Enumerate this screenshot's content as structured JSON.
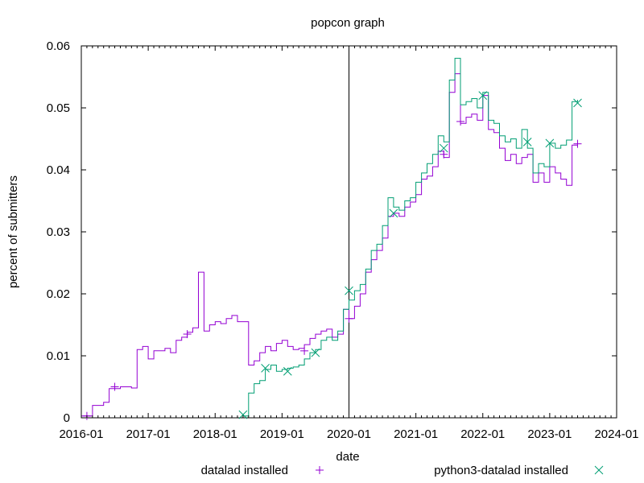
{
  "chart_data": {
    "type": "line",
    "title": "popcon graph",
    "xlabel": "date",
    "ylabel": "percent of submitters",
    "x_range": [
      "2016-01",
      "2024-01"
    ],
    "y_range": [
      0,
      0.06
    ],
    "x_tick_labels": [
      "2016-01",
      "2017-01",
      "2018-01",
      "2019-01",
      "2020-01",
      "2021-01",
      "2022-01",
      "2023-01",
      "2024-01"
    ],
    "y_tick_labels": [
      "0",
      "0.01",
      "0.02",
      "0.03",
      "0.04",
      "0.05",
      "0.06"
    ],
    "marker_line_date": "2020-01",
    "grid": false,
    "legend_position": "bottom",
    "series": [
      {
        "name": "datalad installed",
        "color": "#9400d3",
        "marker": "plus",
        "points": [
          [
            "2016-01",
            0.0003
          ],
          [
            "2016-03",
            0.002
          ],
          [
            "2016-05",
            0.0025
          ],
          [
            "2016-06",
            0.0047
          ],
          [
            "2016-08",
            0.005
          ],
          [
            "2016-10",
            0.0048
          ],
          [
            "2016-11",
            0.011
          ],
          [
            "2016-12",
            0.0115
          ],
          [
            "2017-01",
            0.0095
          ],
          [
            "2017-02",
            0.0108
          ],
          [
            "2017-04",
            0.0112
          ],
          [
            "2017-05",
            0.0105
          ],
          [
            "2017-06",
            0.0125
          ],
          [
            "2017-07",
            0.013
          ],
          [
            "2017-08",
            0.0138
          ],
          [
            "2017-09",
            0.0145
          ],
          [
            "2017-10",
            0.0235
          ],
          [
            "2017-11",
            0.014
          ],
          [
            "2017-12",
            0.015
          ],
          [
            "2018-01",
            0.0155
          ],
          [
            "2018-02",
            0.0152
          ],
          [
            "2018-03",
            0.016
          ],
          [
            "2018-04",
            0.0165
          ],
          [
            "2018-05",
            0.0155
          ],
          [
            "2018-06",
            0.0155
          ],
          [
            "2018-07",
            0.0085
          ],
          [
            "2018-08",
            0.0092
          ],
          [
            "2018-09",
            0.0105
          ],
          [
            "2018-10",
            0.0115
          ],
          [
            "2018-11",
            0.0108
          ],
          [
            "2018-12",
            0.012
          ],
          [
            "2019-01",
            0.0125
          ],
          [
            "2019-02",
            0.0115
          ],
          [
            "2019-03",
            0.011
          ],
          [
            "2019-04",
            0.0112
          ],
          [
            "2019-05",
            0.0118
          ],
          [
            "2019-06",
            0.0128
          ],
          [
            "2019-07",
            0.0135
          ],
          [
            "2019-08",
            0.014
          ],
          [
            "2019-09",
            0.0143
          ],
          [
            "2019-10",
            0.013
          ],
          [
            "2019-11",
            0.0135
          ],
          [
            "2019-12",
            0.0175
          ],
          [
            "2020-01",
            0.016
          ],
          [
            "2020-02",
            0.018
          ],
          [
            "2020-03",
            0.02
          ],
          [
            "2020-04",
            0.0235
          ],
          [
            "2020-05",
            0.0255
          ],
          [
            "2020-06",
            0.027
          ],
          [
            "2020-07",
            0.029
          ],
          [
            "2020-08",
            0.0325
          ],
          [
            "2020-09",
            0.033
          ],
          [
            "2020-10",
            0.0325
          ],
          [
            "2020-11",
            0.034
          ],
          [
            "2020-12",
            0.0348
          ],
          [
            "2021-01",
            0.036
          ],
          [
            "2021-02",
            0.0385
          ],
          [
            "2021-03",
            0.039
          ],
          [
            "2021-04",
            0.0405
          ],
          [
            "2021-05",
            0.043
          ],
          [
            "2021-06",
            0.042
          ],
          [
            "2021-07",
            0.0525
          ],
          [
            "2021-08",
            0.0555
          ],
          [
            "2021-09",
            0.0475
          ],
          [
            "2021-10",
            0.0485
          ],
          [
            "2021-11",
            0.049
          ],
          [
            "2021-12",
            0.048
          ],
          [
            "2022-01",
            0.052
          ],
          [
            "2022-02",
            0.0465
          ],
          [
            "2022-03",
            0.046
          ],
          [
            "2022-04",
            0.0435
          ],
          [
            "2022-05",
            0.0415
          ],
          [
            "2022-06",
            0.0425
          ],
          [
            "2022-07",
            0.041
          ],
          [
            "2022-08",
            0.042
          ],
          [
            "2022-09",
            0.0425
          ],
          [
            "2022-10",
            0.038
          ],
          [
            "2022-11",
            0.0395
          ],
          [
            "2022-12",
            0.038
          ],
          [
            "2023-01",
            0.0405
          ],
          [
            "2023-02",
            0.0395
          ],
          [
            "2023-03",
            0.0385
          ],
          [
            "2023-04",
            0.0375
          ],
          [
            "2023-05",
            0.044
          ],
          [
            "2023-06",
            0.0443
          ]
        ],
        "marker_points": [
          [
            "2016-02",
            0.0003
          ],
          [
            "2016-07",
            0.005
          ],
          [
            "2017-08",
            0.0135
          ],
          [
            "2019-05",
            0.0108
          ],
          [
            "2020-01",
            0.016
          ],
          [
            "2021-06",
            0.0425
          ],
          [
            "2021-09",
            0.0478
          ],
          [
            "2023-06",
            0.0442
          ]
        ]
      },
      {
        "name": "python3-datalad installed",
        "color": "#009e73",
        "marker": "cross",
        "points": [
          [
            "2018-06",
            0.0003
          ],
          [
            "2018-07",
            0.004
          ],
          [
            "2018-08",
            0.0055
          ],
          [
            "2018-09",
            0.006
          ],
          [
            "2018-10",
            0.0078
          ],
          [
            "2018-11",
            0.0085
          ],
          [
            "2018-12",
            0.0075
          ],
          [
            "2019-01",
            0.0078
          ],
          [
            "2019-02",
            0.008
          ],
          [
            "2019-03",
            0.0082
          ],
          [
            "2019-04",
            0.0085
          ],
          [
            "2019-05",
            0.0095
          ],
          [
            "2019-06",
            0.0105
          ],
          [
            "2019-07",
            0.011
          ],
          [
            "2019-08",
            0.0125
          ],
          [
            "2019-09",
            0.013
          ],
          [
            "2019-10",
            0.0125
          ],
          [
            "2019-11",
            0.014
          ],
          [
            "2019-12",
            0.0175
          ],
          [
            "2020-01",
            0.019
          ],
          [
            "2020-02",
            0.0205
          ],
          [
            "2020-03",
            0.0215
          ],
          [
            "2020-04",
            0.024
          ],
          [
            "2020-05",
            0.027
          ],
          [
            "2020-06",
            0.028
          ],
          [
            "2020-07",
            0.031
          ],
          [
            "2020-08",
            0.0355
          ],
          [
            "2020-09",
            0.034
          ],
          [
            "2020-10",
            0.0335
          ],
          [
            "2020-11",
            0.035
          ],
          [
            "2020-12",
            0.0355
          ],
          [
            "2021-01",
            0.038
          ],
          [
            "2021-02",
            0.0395
          ],
          [
            "2021-03",
            0.041
          ],
          [
            "2021-04",
            0.0425
          ],
          [
            "2021-05",
            0.0455
          ],
          [
            "2021-06",
            0.0445
          ],
          [
            "2021-07",
            0.0545
          ],
          [
            "2021-08",
            0.058
          ],
          [
            "2021-09",
            0.0505
          ],
          [
            "2021-10",
            0.051
          ],
          [
            "2021-11",
            0.0515
          ],
          [
            "2021-12",
            0.05
          ],
          [
            "2022-01",
            0.0525
          ],
          [
            "2022-02",
            0.048
          ],
          [
            "2022-03",
            0.0475
          ],
          [
            "2022-04",
            0.0455
          ],
          [
            "2022-05",
            0.0445
          ],
          [
            "2022-06",
            0.045
          ],
          [
            "2022-07",
            0.0435
          ],
          [
            "2022-08",
            0.0465
          ],
          [
            "2022-09",
            0.0435
          ],
          [
            "2022-10",
            0.0395
          ],
          [
            "2022-11",
            0.041
          ],
          [
            "2022-12",
            0.0405
          ],
          [
            "2023-01",
            0.0443
          ],
          [
            "2023-02",
            0.0435
          ],
          [
            "2023-03",
            0.044
          ],
          [
            "2023-04",
            0.0448
          ],
          [
            "2023-05",
            0.051
          ],
          [
            "2023-06",
            0.0513
          ]
        ],
        "marker_points": [
          [
            "2018-06",
            0.0005
          ],
          [
            "2018-10",
            0.008
          ],
          [
            "2019-02",
            0.0075
          ],
          [
            "2019-07",
            0.0105
          ],
          [
            "2020-01",
            0.0205
          ],
          [
            "2020-09",
            0.033
          ],
          [
            "2021-06",
            0.0435
          ],
          [
            "2022-01",
            0.052
          ],
          [
            "2022-09",
            0.0445
          ],
          [
            "2023-01",
            0.0443
          ],
          [
            "2023-06",
            0.0508
          ]
        ]
      }
    ]
  }
}
